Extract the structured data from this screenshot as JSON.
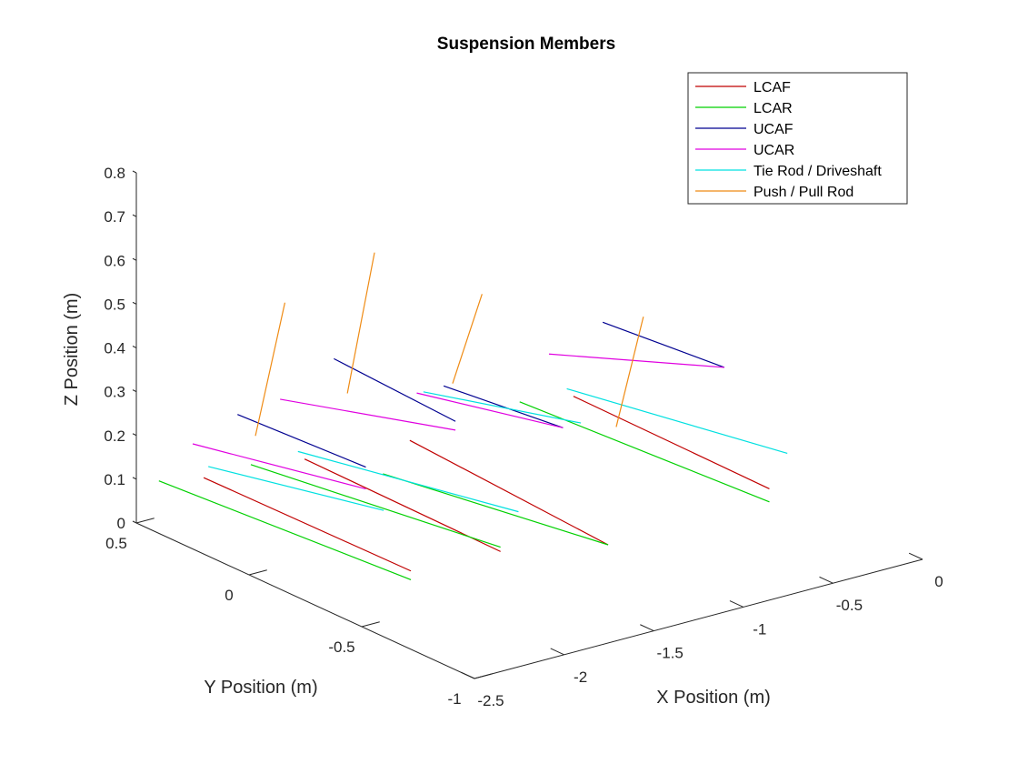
{
  "chart_data": {
    "type": "line",
    "projection": "3d",
    "title": "Suspension Members",
    "xlabel": "X Position (m)",
    "ylabel": "Y Position (m)",
    "zlabel": "Z Position (m)",
    "xlim": [
      -2.5,
      0
    ],
    "ylim": [
      -1,
      0.5
    ],
    "zlim": [
      0,
      0.8
    ],
    "xticks": [
      -2.5,
      -2,
      -1.5,
      -1,
      -0.5,
      0
    ],
    "yticks": [
      -1,
      -0.5,
      0,
      0.5
    ],
    "zticks": [
      0,
      0.1,
      0.2,
      0.3,
      0.4,
      0.5,
      0.6,
      0.7,
      0.8
    ],
    "xtick_labels": [
      "-2.5",
      "-2",
      "-1.5",
      "-1",
      "-0.5",
      "0"
    ],
    "ytick_labels": [
      "-1",
      "-0.5",
      "0",
      "0.5"
    ],
    "ztick_labels": [
      "0",
      "0.1",
      "0.2",
      "0.3",
      "0.4",
      "0.5",
      "0.6",
      "0.7",
      "0.8"
    ],
    "grid": false,
    "legend_position": "top-right",
    "series": [
      {
        "name": "LCAF",
        "color": "#c00000",
        "segments": [
          [
            [
              -0.25,
              0.35,
              0.08
            ],
            [
              -0.1,
              -0.4,
              0.03
            ]
          ],
          [
            [
              -1.75,
              0.35,
              0.1
            ],
            [
              -1.6,
              -0.4,
              0.05
            ]
          ],
          [
            [
              -1.1,
              0.4,
              0.06
            ],
            [
              -1.0,
              -0.4,
              0.0
            ]
          ],
          [
            [
              -2.25,
              0.4,
              0.1
            ],
            [
              -2.1,
              -0.4,
              0.06
            ]
          ]
        ]
      },
      {
        "name": "LCAR",
        "color": "#00d000",
        "segments": [
          [
            [
              -0.55,
              0.35,
              0.1
            ],
            [
              -0.1,
              -0.4,
              0.0
            ]
          ],
          [
            [
              -2.05,
              0.35,
              0.12
            ],
            [
              -1.6,
              -0.4,
              0.06
            ]
          ],
          [
            [
              -1.25,
              0.4,
              0.0
            ],
            [
              -1.0,
              -0.4,
              0.0
            ]
          ],
          [
            [
              -2.5,
              0.4,
              0.12
            ],
            [
              -2.1,
              -0.4,
              0.04
            ]
          ]
        ]
      },
      {
        "name": "UCAF",
        "color": "#000090",
        "segments": [
          [
            [
              -0.25,
              0.22,
              0.28
            ],
            [
              -0.1,
              -0.2,
              0.26
            ]
          ],
          [
            [
              -1.75,
              0.22,
              0.36
            ],
            [
              -1.6,
              -0.2,
              0.3
            ]
          ],
          [
            [
              -1.1,
              0.25,
              0.22
            ],
            [
              -1.0,
              -0.2,
              0.22
            ]
          ],
          [
            [
              -2.25,
              0.25,
              0.28
            ],
            [
              -2.1,
              -0.2,
              0.25
            ]
          ]
        ]
      },
      {
        "name": "UCAR",
        "color": "#e000e0",
        "segments": [
          [
            [
              -0.55,
              0.22,
              0.24
            ],
            [
              -0.1,
              -0.2,
              0.26
            ]
          ],
          [
            [
              -2.05,
              0.22,
              0.3
            ],
            [
              -1.6,
              -0.2,
              0.28
            ]
          ],
          [
            [
              -1.25,
              0.25,
              0.22
            ],
            [
              -1.0,
              -0.2,
              0.22
            ]
          ],
          [
            [
              -2.5,
              0.25,
              0.24
            ],
            [
              -2.1,
              -0.2,
              0.2
            ]
          ]
        ]
      },
      {
        "name": "Tie Rod / Driveshaft",
        "color": "#00e0e0",
        "segments": [
          [
            [
              -0.35,
              0.3,
              0.12
            ],
            [
              0.0,
              -0.4,
              0.1
            ]
          ],
          [
            [
              -1.85,
              0.3,
              0.14
            ],
            [
              -1.5,
              -0.4,
              0.13
            ]
          ],
          [
            [
              -1.15,
              0.3,
              0.2
            ],
            [
              -0.9,
              -0.2,
              0.22
            ]
          ],
          [
            [
              -2.35,
              0.3,
              0.16
            ],
            [
              -2.0,
              -0.2,
              0.14
            ]
          ]
        ]
      },
      {
        "name": "Push / Pull Rod",
        "color": "#ef8b14",
        "segments": [
          [
            [
              -0.2,
              0.2,
              0.04
            ],
            [
              -0.3,
              0.0,
              0.35
            ]
          ],
          [
            [
              -1.7,
              0.2,
              0.28
            ],
            [
              -1.8,
              0.0,
              0.66
            ]
          ],
          [
            [
              -1.05,
              0.25,
              0.22
            ],
            [
              -1.2,
              0.0,
              0.5
            ]
          ],
          [
            [
              -2.15,
              0.25,
              0.22
            ],
            [
              -2.3,
              0.0,
              0.6
            ]
          ]
        ]
      }
    ]
  }
}
